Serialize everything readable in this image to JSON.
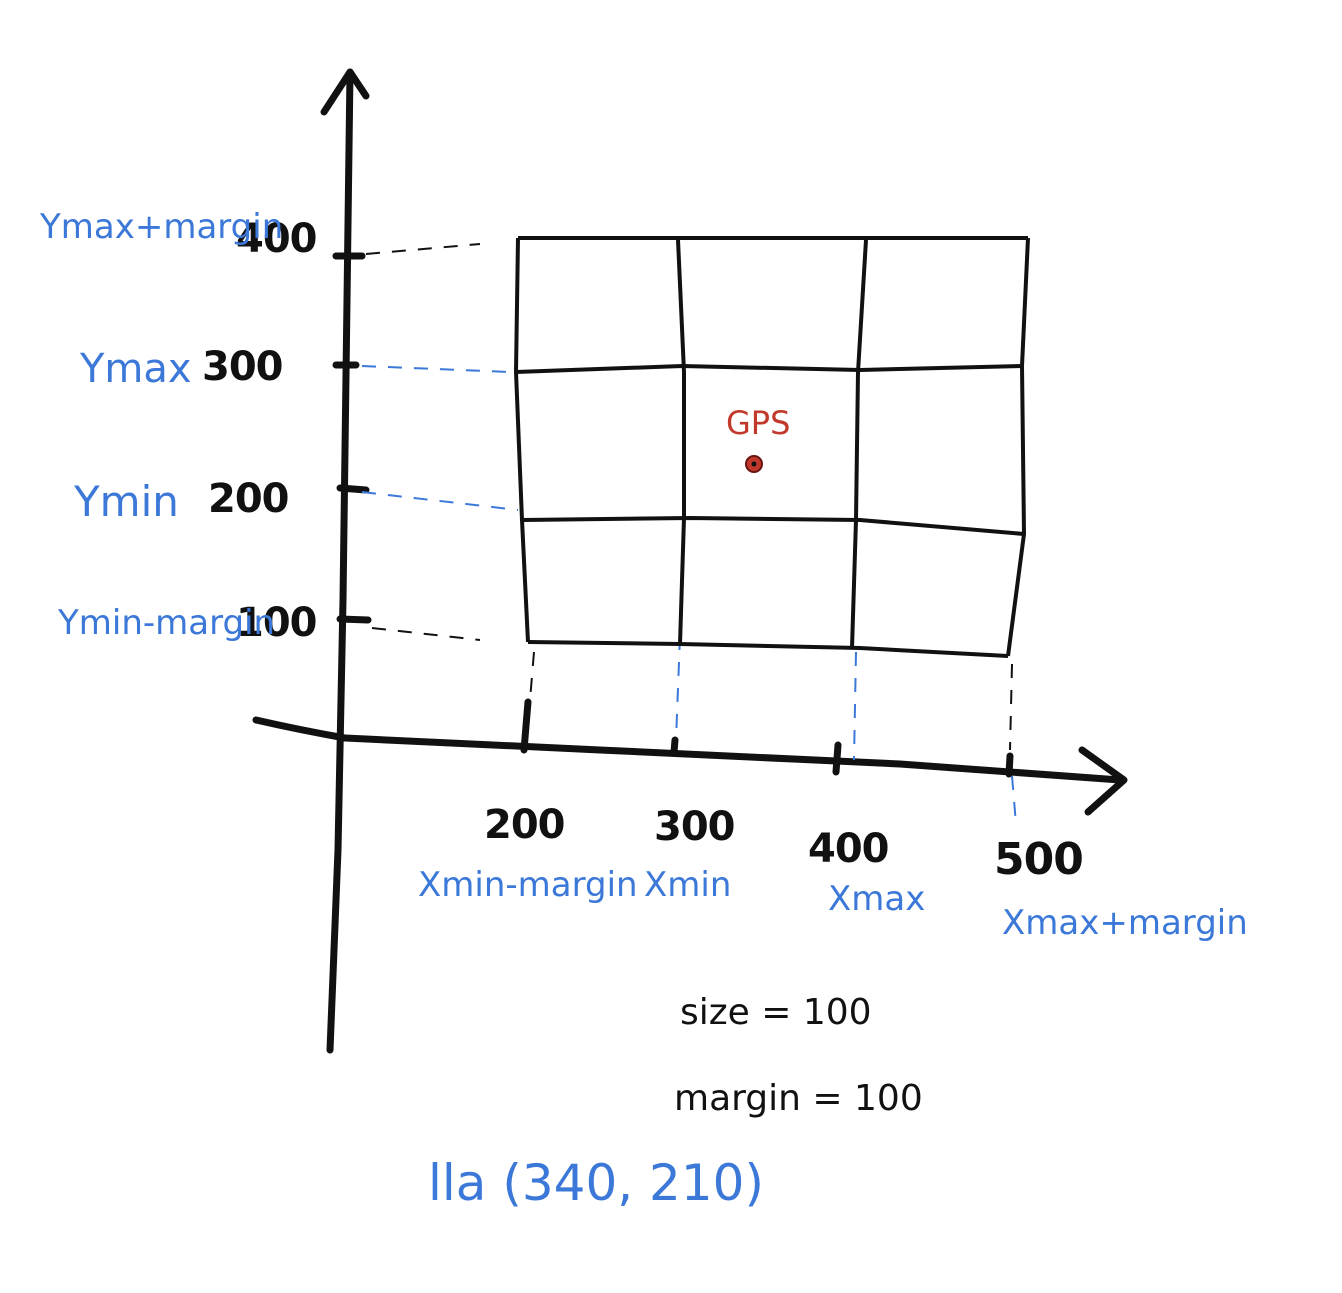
{
  "colors": {
    "ink": "#111111",
    "blue": "#3b78d8",
    "red": "#c0392b"
  },
  "y_axis": {
    "ticks": [
      {
        "value": "400",
        "label": "Ymax+margin"
      },
      {
        "value": "300",
        "label": "Ymax"
      },
      {
        "value": "200",
        "label": "Ymin"
      },
      {
        "value": "100",
        "label": "Ymin-margin"
      }
    ]
  },
  "x_axis": {
    "ticks": [
      {
        "value": "200",
        "label": "Xmin-margin"
      },
      {
        "value": "300",
        "label": "Xmin"
      },
      {
        "value": "400",
        "label": "Xmax"
      },
      {
        "value": "500",
        "label": "Xmax+margin"
      }
    ]
  },
  "grid": {
    "rows": 3,
    "cols": 3
  },
  "point": {
    "label": "GPS"
  },
  "notes": {
    "size": "size = 100",
    "margin": "margin = 100"
  },
  "lla": "lla (340, 210)"
}
